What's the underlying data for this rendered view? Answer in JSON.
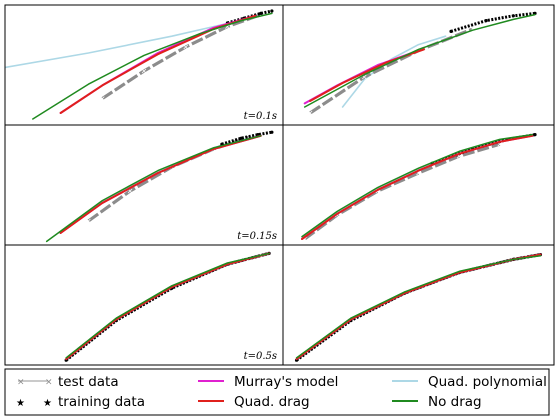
{
  "chart_data": {
    "type": "line",
    "layout": "3 rows x 2 columns of trajectory panels with a shared legend below",
    "colors": {
      "test data": "#aaaaaa",
      "training data": "#000000",
      "Murray's model": "#e020d0",
      "Quad. drag": "#e0201c",
      "Quad. polynomial": "#add8e6",
      "No drag": "#1f8a1f",
      "gray trajectory": "#8c8c8c"
    },
    "axes": {
      "ticks": "none",
      "grid": false,
      "xlim": [
        0,
        1
      ],
      "ylim": [
        0,
        1
      ]
    },
    "panel_labels": [
      "t=0.1s",
      "t=0.15s",
      "t=0.5s"
    ],
    "panels": [
      {
        "label": "t=0.1s",
        "series": [
          {
            "name": "test data",
            "x": [
              0.35,
              0.5,
              0.65,
              0.8,
              0.92
            ],
            "y": [
              0.22,
              0.45,
              0.65,
              0.82,
              0.92
            ]
          },
          {
            "name": "training data",
            "x": [
              0.8,
              0.86,
              0.92,
              0.96
            ],
            "y": [
              0.85,
              0.89,
              0.93,
              0.95
            ]
          },
          {
            "name": "Murray's model",
            "x": [
              0.2,
              0.35,
              0.55,
              0.75,
              0.9
            ],
            "y": [
              0.1,
              0.33,
              0.6,
              0.81,
              0.91
            ]
          },
          {
            "name": "Quad. drag",
            "x": [
              0.2,
              0.35,
              0.55,
              0.75,
              0.9
            ],
            "y": [
              0.1,
              0.33,
              0.59,
              0.8,
              0.91
            ]
          },
          {
            "name": "Quad. polynomial",
            "x": [
              0.0,
              0.3,
              0.6,
              0.75,
              0.9
            ],
            "y": [
              0.48,
              0.6,
              0.74,
              0.82,
              0.9
            ]
          },
          {
            "name": "No drag",
            "x": [
              0.1,
              0.3,
              0.5,
              0.7,
              0.85,
              0.96
            ],
            "y": [
              0.05,
              0.34,
              0.58,
              0.76,
              0.87,
              0.93
            ]
          }
        ]
      },
      {
        "label": "",
        "series": [
          {
            "name": "test data",
            "x": [
              0.1,
              0.3,
              0.5,
              0.7
            ],
            "y": [
              0.1,
              0.4,
              0.62,
              0.8
            ]
          },
          {
            "name": "training data",
            "x": [
              0.62,
              0.75,
              0.85,
              0.93
            ],
            "y": [
              0.78,
              0.87,
              0.91,
              0.93
            ]
          },
          {
            "name": "Murray's model",
            "x": [
              0.08,
              0.2,
              0.35,
              0.5
            ],
            "y": [
              0.18,
              0.33,
              0.5,
              0.62
            ]
          },
          {
            "name": "Quad. drag",
            "x": [
              0.1,
              0.22,
              0.38,
              0.52
            ],
            "y": [
              0.2,
              0.35,
              0.52,
              0.63
            ]
          },
          {
            "name": "Quad. polynomial",
            "x": [
              0.22,
              0.3,
              0.4,
              0.5,
              0.6
            ],
            "y": [
              0.15,
              0.38,
              0.55,
              0.67,
              0.74
            ]
          },
          {
            "name": "No drag",
            "x": [
              0.08,
              0.3,
              0.5,
              0.7,
              0.85,
              0.93
            ],
            "y": [
              0.15,
              0.42,
              0.63,
              0.79,
              0.88,
              0.92
            ]
          }
        ]
      },
      {
        "label": "t=0.15s",
        "series": [
          {
            "name": "test data",
            "x": [
              0.3,
              0.45,
              0.6,
              0.75,
              0.88
            ],
            "y": [
              0.2,
              0.45,
              0.65,
              0.8,
              0.9
            ]
          },
          {
            "name": "training data",
            "x": [
              0.78,
              0.85,
              0.91,
              0.96
            ],
            "y": [
              0.84,
              0.89,
              0.92,
              0.94
            ]
          },
          {
            "name": "Murray's model",
            "x": [
              0.2,
              0.35,
              0.55,
              0.75,
              0.92
            ],
            "y": [
              0.1,
              0.35,
              0.6,
              0.8,
              0.91
            ]
          },
          {
            "name": "Quad. drag",
            "x": [
              0.2,
              0.35,
              0.55,
              0.75,
              0.92
            ],
            "y": [
              0.1,
              0.35,
              0.6,
              0.8,
              0.91
            ]
          },
          {
            "name": "Quad. polynomial",
            "x": [
              0.2,
              0.35,
              0.55,
              0.75,
              0.92
            ],
            "y": [
              0.11,
              0.36,
              0.61,
              0.81,
              0.92
            ]
          },
          {
            "name": "No drag",
            "x": [
              0.15,
              0.35,
              0.55,
              0.75,
              0.92
            ],
            "y": [
              0.03,
              0.37,
              0.62,
              0.81,
              0.91
            ]
          }
        ]
      },
      {
        "label": "",
        "series": [
          {
            "name": "test data",
            "x": [
              0.08,
              0.2,
              0.35,
              0.5,
              0.65,
              0.8
            ],
            "y": [
              0.05,
              0.25,
              0.45,
              0.6,
              0.74,
              0.84
            ]
          },
          {
            "name": "training data",
            "x": [
              0.55,
              0.7,
              0.83,
              0.93
            ],
            "y": [
              0.68,
              0.8,
              0.88,
              0.92
            ]
          },
          {
            "name": "Murray's model",
            "x": [
              0.07,
              0.2,
              0.35,
              0.5,
              0.65,
              0.8,
              0.92
            ],
            "y": [
              0.05,
              0.26,
              0.46,
              0.62,
              0.76,
              0.86,
              0.91
            ]
          },
          {
            "name": "Quad. drag",
            "x": [
              0.07,
              0.2,
              0.35,
              0.5,
              0.65,
              0.8,
              0.92
            ],
            "y": [
              0.05,
              0.26,
              0.46,
              0.62,
              0.76,
              0.86,
              0.91
            ]
          },
          {
            "name": "Quad. polynomial",
            "x": [
              0.07,
              0.2,
              0.35,
              0.5,
              0.65,
              0.8,
              0.92
            ],
            "y": [
              0.06,
              0.27,
              0.47,
              0.63,
              0.77,
              0.87,
              0.92
            ]
          },
          {
            "name": "No drag",
            "x": [
              0.07,
              0.2,
              0.35,
              0.5,
              0.65,
              0.8,
              0.92
            ],
            "y": [
              0.07,
              0.28,
              0.48,
              0.64,
              0.78,
              0.88,
              0.92
            ]
          }
        ]
      },
      {
        "label": "t=0.5s",
        "series": [
          {
            "name": "test data",
            "x": [
              0.22,
              0.4,
              0.6,
              0.8,
              0.95
            ],
            "y": [
              0.05,
              0.38,
              0.65,
              0.84,
              0.93
            ]
          },
          {
            "name": "training data",
            "x": [
              0.22,
              0.4,
              0.6,
              0.8,
              0.95
            ],
            "y": [
              0.04,
              0.37,
              0.64,
              0.84,
              0.93
            ]
          },
          {
            "name": "Murray's model",
            "x": [
              0.22,
              0.4,
              0.6,
              0.8,
              0.95
            ],
            "y": [
              0.05,
              0.38,
              0.65,
              0.84,
              0.93
            ]
          },
          {
            "name": "Quad. drag",
            "x": [
              0.22,
              0.4,
              0.6,
              0.8,
              0.95
            ],
            "y": [
              0.05,
              0.38,
              0.65,
              0.84,
              0.93
            ]
          },
          {
            "name": "Quad. polynomial",
            "x": [
              0.22,
              0.4,
              0.6,
              0.8,
              0.95
            ],
            "y": [
              0.05,
              0.38,
              0.65,
              0.84,
              0.93
            ]
          },
          {
            "name": "No drag",
            "x": [
              0.22,
              0.4,
              0.6,
              0.8,
              0.95
            ],
            "y": [
              0.06,
              0.39,
              0.66,
              0.85,
              0.93
            ]
          }
        ]
      },
      {
        "label": "",
        "series": [
          {
            "name": "test data",
            "x": [
              0.05,
              0.25,
              0.45,
              0.65,
              0.85,
              0.95
            ],
            "y": [
              0.05,
              0.38,
              0.6,
              0.77,
              0.88,
              0.92
            ]
          },
          {
            "name": "training data",
            "x": [
              0.05,
              0.25,
              0.45,
              0.65,
              0.85,
              0.95
            ],
            "y": [
              0.04,
              0.37,
              0.6,
              0.77,
              0.88,
              0.92
            ]
          },
          {
            "name": "Murray's model",
            "x": [
              0.05,
              0.25,
              0.45,
              0.65,
              0.85,
              0.95
            ],
            "y": [
              0.05,
              0.38,
              0.6,
              0.77,
              0.88,
              0.92
            ]
          },
          {
            "name": "Quad. drag",
            "x": [
              0.05,
              0.25,
              0.45,
              0.65,
              0.85,
              0.95
            ],
            "y": [
              0.05,
              0.38,
              0.6,
              0.77,
              0.88,
              0.92
            ]
          },
          {
            "name": "Quad. polynomial",
            "x": [
              0.05,
              0.25,
              0.45,
              0.65,
              0.85,
              0.95
            ],
            "y": [
              0.05,
              0.38,
              0.6,
              0.77,
              0.88,
              0.92
            ]
          },
          {
            "name": "No drag",
            "x": [
              0.05,
              0.25,
              0.45,
              0.65,
              0.85,
              0.95
            ],
            "y": [
              0.06,
              0.39,
              0.61,
              0.78,
              0.88,
              0.91
            ]
          }
        ]
      }
    ],
    "legend": {
      "position": "bottom",
      "columns": 3,
      "entries": [
        {
          "label": "test data",
          "style": "gray line with x markers"
        },
        {
          "label": "training data",
          "style": "black star markers"
        },
        {
          "label": "Murray's model",
          "style": "magenta line"
        },
        {
          "label": "Quad. drag",
          "style": "red line"
        },
        {
          "label": "Quad. polynomial",
          "style": "light blue line"
        },
        {
          "label": "No drag",
          "style": "green line"
        }
      ]
    }
  }
}
